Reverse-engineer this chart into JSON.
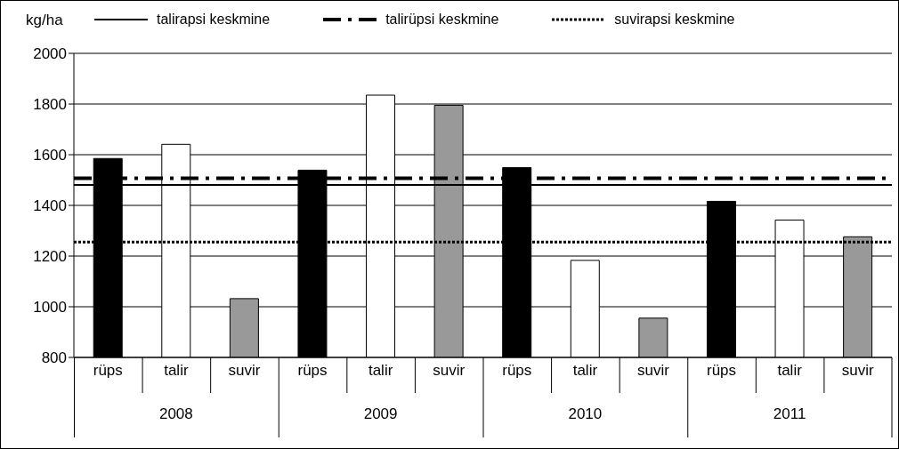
{
  "chart_data": {
    "type": "bar",
    "ylabel": "kg/ha",
    "categories": [
      "rüps",
      "talir",
      "suvir",
      "rüps",
      "talir",
      "suvir",
      "rüps",
      "talir",
      "suvir",
      "rüps",
      "talir",
      "suvir"
    ],
    "values": [
      1585,
      1641,
      1032,
      1539,
      1835,
      1795,
      1549,
      1183,
      955,
      1416,
      1342,
      1276
    ],
    "colors": [
      "#000000",
      "#ffffff",
      "#999999",
      "#000000",
      "#ffffff",
      "#999999",
      "#000000",
      "#ffffff",
      "#999999",
      "#000000",
      "#ffffff",
      "#999999"
    ],
    "annotations": [
      "2008",
      "2009",
      "2010",
      "2011"
    ],
    "ylim": [
      800,
      2000
    ],
    "yticks": [
      800,
      1000,
      1200,
      1400,
      1600,
      1800,
      2000
    ],
    "grid": "y",
    "legend": "top",
    "ref_lines": [
      {
        "axis": "y",
        "value": 1481,
        "label": "talirapsi keskmine",
        "color": "#000000",
        "line_style": "solid"
      },
      {
        "axis": "y",
        "value": 1507,
        "label": "talirüpsi keskmine",
        "color": "#000000",
        "line_style": "dashdot"
      },
      {
        "axis": "y",
        "value": 1255,
        "label": "suvirapsi keskmine",
        "color": "#000000",
        "line_style": "dotted"
      }
    ]
  }
}
